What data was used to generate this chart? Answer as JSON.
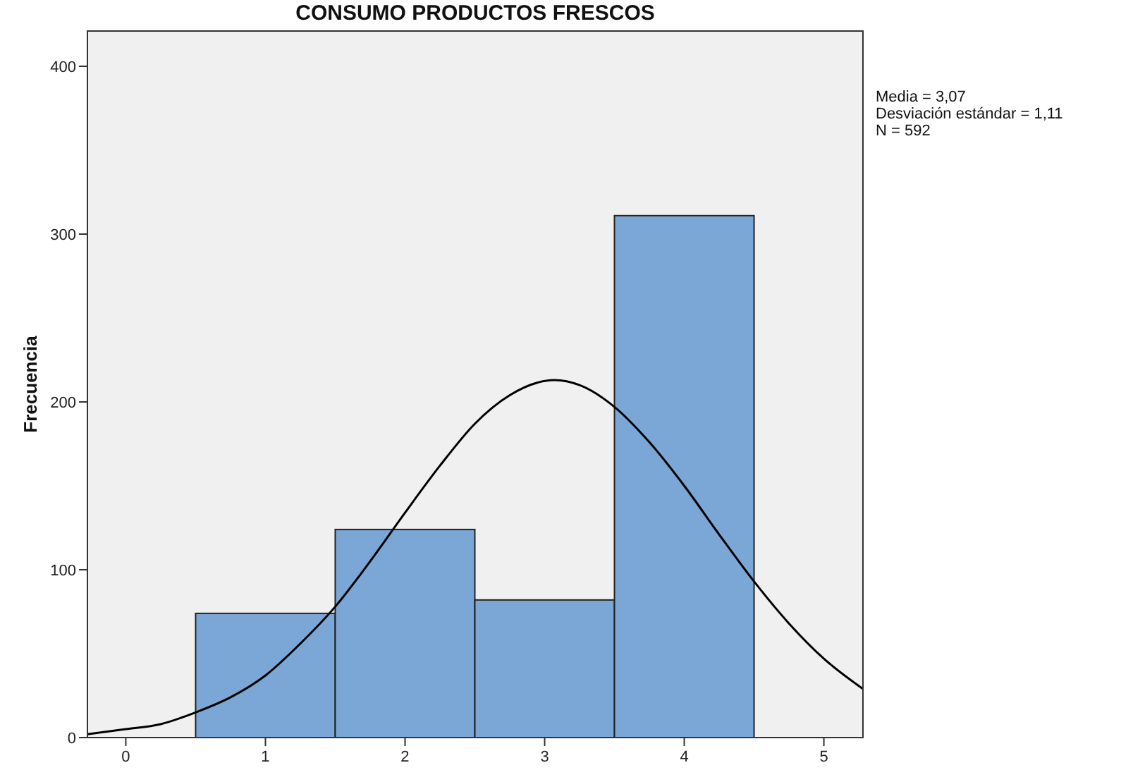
{
  "chart_data": {
    "type": "histogram",
    "title": "CONSUMO PRODUCTOS FRESCOS",
    "ylabel": "Frecuencia",
    "annotations": [
      "Media = 3,07",
      "Desviación estándar = 1,11",
      "N = 592"
    ],
    "xlim": [
      -0.275,
      5.28
    ],
    "xticks": [
      0,
      1,
      2,
      3,
      4,
      5
    ],
    "ylim": [
      0,
      421
    ],
    "yticks": [
      0,
      100,
      200,
      300,
      400
    ],
    "grid": false,
    "series": [
      {
        "color": "#7ba7d6",
        "bins": [
          0.5,
          1.5,
          2.5,
          3.5,
          4.5
        ],
        "values": [
          74,
          124,
          82,
          311
        ]
      },
      {
        "type": "line",
        "color": "#000000",
        "marker": "none",
        "line_style": "solid",
        "x": [
          -0.275,
          0,
          0.25,
          0.5,
          0.75,
          1,
          1.25,
          1.5,
          1.75,
          2,
          2.25,
          2.5,
          2.75,
          3.07,
          3.25,
          3.5,
          3.75,
          4,
          4.25,
          4.5,
          4.75,
          5,
          5.28
        ],
        "values": [
          2,
          5,
          8,
          15,
          24,
          37,
          56,
          78,
          105,
          134,
          162,
          187,
          204,
          213,
          210,
          197,
          176,
          150,
          121,
          93,
          68,
          47,
          29
        ]
      }
    ]
  }
}
